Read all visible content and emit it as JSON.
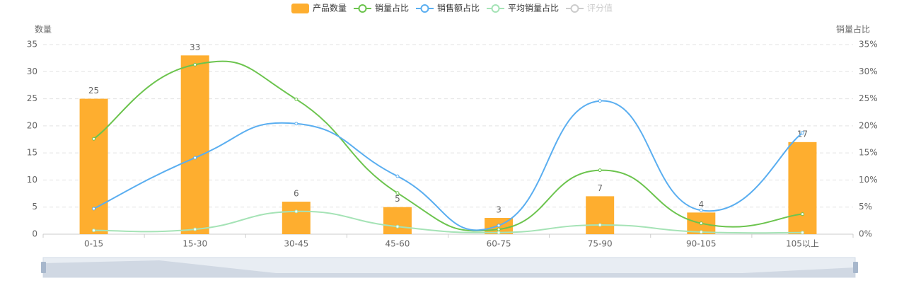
{
  "chart_data": {
    "type": "bar-line",
    "y_axis_label": "数量",
    "y2_axis_label": "销量占比",
    "categories": [
      "0-15",
      "15-30",
      "30-45",
      "45-60",
      "60-75",
      "75-90",
      "90-105",
      "105以上"
    ],
    "ylim": [
      0,
      35
    ],
    "yticks": [
      0,
      5,
      10,
      15,
      20,
      25,
      30,
      35
    ],
    "y2lim": [
      0,
      35
    ],
    "y2ticks": [
      {
        "value": 0,
        "label": "0%"
      },
      {
        "value": 5,
        "label": "5%"
      },
      {
        "value": 10,
        "label": "10%"
      },
      {
        "value": 15,
        "label": "15%"
      },
      {
        "value": 20,
        "label": "20%"
      },
      {
        "value": 25,
        "label": "25%"
      },
      {
        "value": 30,
        "label": "30%"
      },
      {
        "value": 35,
        "label": "35%"
      }
    ],
    "grid": true,
    "series": [
      {
        "name": "产品数量",
        "type": "bar",
        "color": "#feae2f",
        "values": [
          25,
          33,
          6,
          5,
          3,
          7,
          4,
          17
        ]
      },
      {
        "name": "销量占比",
        "type": "line",
        "axis": "y2",
        "color": "#6cc44e",
        "values": [
          17.6,
          31.3,
          24.9,
          7.6,
          0.9,
          11.8,
          2.0,
          3.7
        ]
      },
      {
        "name": "销售额占比",
        "type": "line",
        "axis": "y2",
        "color": "#5aaef0",
        "values": [
          4.7,
          14.1,
          20.4,
          10.7,
          1.6,
          24.6,
          4.4,
          18.7
        ]
      },
      {
        "name": "平均销量占比",
        "type": "line",
        "axis": "y2",
        "color": "#a5e3b6",
        "values": [
          0.7,
          0.9,
          4.2,
          1.4,
          0.3,
          1.7,
          0.4,
          0.3
        ]
      },
      {
        "name": "评分值",
        "type": "line",
        "axis": "y2",
        "color": "#cccccc",
        "disabled": true,
        "values": [
          null,
          null,
          null,
          null,
          null,
          null,
          null,
          null
        ]
      }
    ]
  }
}
